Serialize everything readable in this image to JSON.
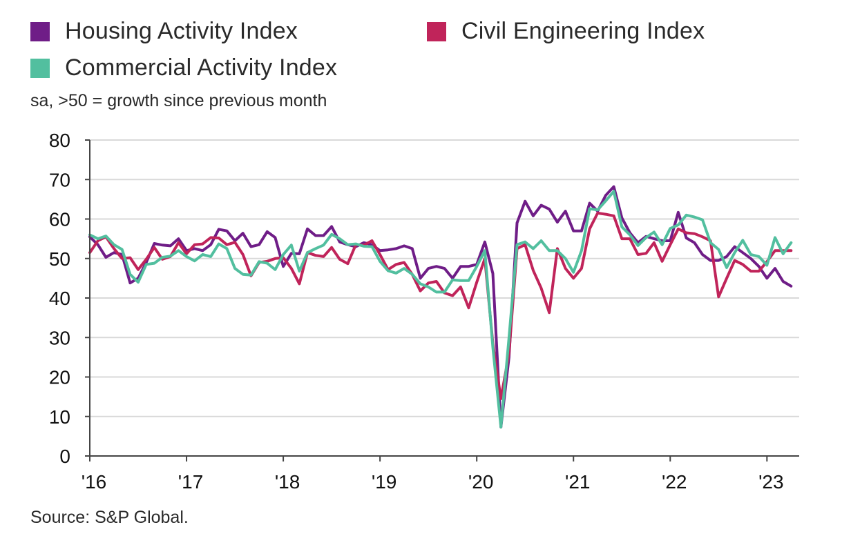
{
  "legend": {
    "items": [
      {
        "label": "Housing Activity Index",
        "color": "#6f1d87"
      },
      {
        "label": "Civil Engineering Index",
        "color": "#c0245a"
      },
      {
        "label": "Commercial Activity Index",
        "color": "#52bf9f"
      }
    ]
  },
  "subtitle": "sa, >50 = growth since previous month",
  "source": "Source: S&P Global.",
  "chart_data": {
    "type": "line",
    "ylim": [
      0,
      80
    ],
    "y_ticks": [
      "0",
      "10",
      "20",
      "30",
      "40",
      "50",
      "60",
      "70",
      "80"
    ],
    "x_tick_labels": [
      "'16",
      "'17",
      "'18",
      "'19",
      "'20",
      "'21",
      "'22",
      "'23"
    ],
    "x_ticks": [
      "2016-01",
      "2017-01",
      "2018-01",
      "2019-01",
      "2020-01",
      "2021-01",
      "2022-01",
      "2023-01"
    ],
    "x_start": "2016-01",
    "x_end": "2023-04",
    "grid": true,
    "legend_position": "top",
    "series": [
      {
        "name": "Housing Activity Index",
        "color": "#6f1d87",
        "values": [
          55.5,
          53.5,
          50.3,
          51.5,
          51,
          43.8,
          45,
          49,
          53.8,
          53.4,
          53.2,
          55,
          52,
          52.5,
          52,
          53.5,
          57.4,
          57,
          54.5,
          56.4,
          53,
          53.5,
          56.8,
          55.3,
          48,
          51.3,
          51.2,
          57.5,
          55.8,
          55.8,
          58.1,
          54.2,
          53.5,
          53,
          54,
          53.5,
          52,
          52.2,
          52.5,
          53.2,
          52.5,
          45,
          47.5,
          48,
          47.5,
          45,
          48,
          48,
          48.5,
          54.2,
          46.2,
          7.3,
          25,
          59,
          64.5,
          60.8,
          63.5,
          62.5,
          59.2,
          62,
          57,
          57,
          64,
          62,
          66,
          68.2,
          60.3,
          56.5,
          54,
          55.6,
          55,
          54.5,
          54.5,
          61.7,
          55.2,
          54,
          51,
          49.5,
          49.5,
          50.5,
          53,
          51.5,
          50,
          48,
          45,
          47.5,
          44.2,
          43
        ]
      },
      {
        "name": "Civil Engineering Index",
        "color": "#c0245a",
        "values": [
          51.5,
          54.5,
          55.5,
          52.5,
          50,
          50.2,
          47.2,
          49.8,
          52.8,
          49.8,
          50.5,
          54,
          51.2,
          53.5,
          53.7,
          55.3,
          55.2,
          53.5,
          54.1,
          51,
          45.6,
          49,
          49.3,
          50,
          50.2,
          47.5,
          43.6,
          51.5,
          50.8,
          50.5,
          52.8,
          49.8,
          48.7,
          53.5,
          53.4,
          54.5,
          51,
          47.2,
          48.5,
          49,
          46,
          41.8,
          43.8,
          44.2,
          41.3,
          40.6,
          42.8,
          37.5,
          44,
          50,
          28.5,
          14.5,
          26,
          52.5,
          53.5,
          47,
          42.5,
          36.3,
          52.5,
          47.5,
          45,
          47.5,
          57.5,
          61.5,
          61.2,
          60.8,
          55,
          55,
          51,
          51.3,
          54,
          49.3,
          53.5,
          57.5,
          56.5,
          56.3,
          55.5,
          54.5,
          40.3,
          45,
          49.5,
          48.5,
          46.8,
          46.8,
          49.2,
          52,
          52,
          52
        ]
      },
      {
        "name": "Commercial Activity Index",
        "color": "#52bf9f",
        "values": [
          56,
          55,
          55.7,
          53.5,
          52.3,
          46,
          44,
          48.5,
          48.8,
          50.3,
          50.6,
          52,
          50.5,
          49.4,
          51,
          50.5,
          53.7,
          52.5,
          47.5,
          46,
          45.8,
          49.2,
          48.8,
          47.2,
          51,
          53.4,
          46.8,
          51.5,
          52.5,
          53.4,
          56.1,
          55,
          53.5,
          53.7,
          53.1,
          53,
          49.3,
          46.9,
          46.3,
          47.5,
          46,
          43.6,
          42.8,
          41.5,
          41.5,
          44.6,
          44.4,
          44.4,
          48,
          52,
          27.5,
          7.3,
          30,
          53.5,
          54.2,
          52.5,
          54.5,
          52,
          52,
          50,
          46.5,
          52,
          62.6,
          62.3,
          64.6,
          67,
          58,
          56,
          53.3,
          55.3,
          56.7,
          53.5,
          57.6,
          58.5,
          61,
          60.5,
          59.8,
          54,
          52.3,
          47.7,
          51.5,
          54.6,
          51,
          50.5,
          48.3,
          55.3,
          51.2,
          54
        ]
      }
    ]
  }
}
